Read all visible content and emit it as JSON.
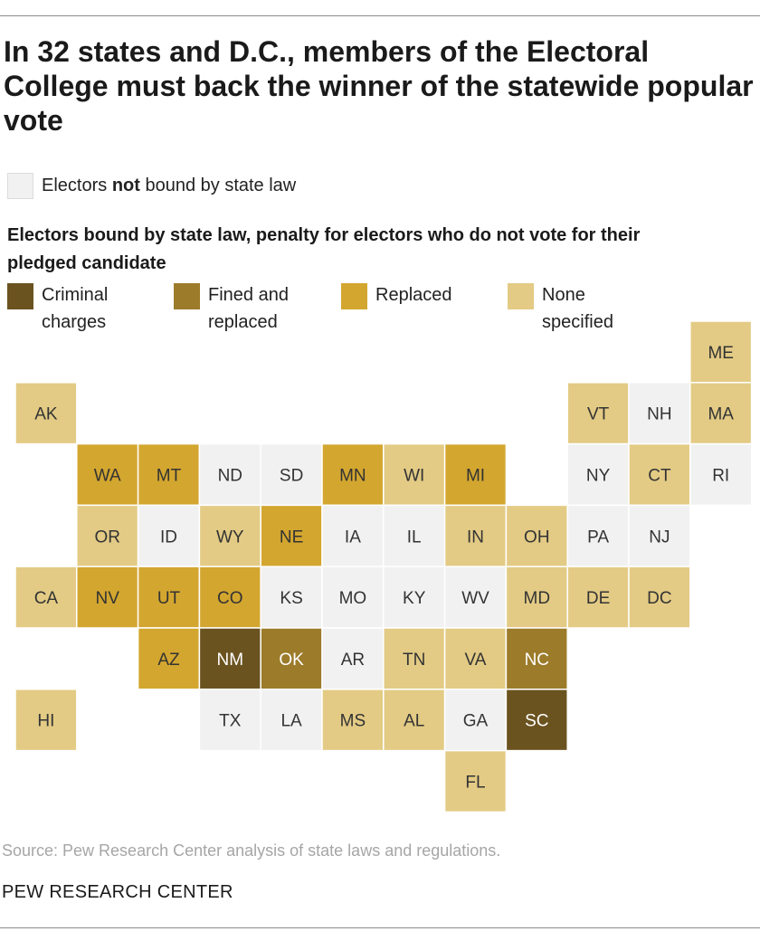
{
  "title": "In 32 states and D.C., members of the Electoral College must back the winner of the statewide popular vote",
  "legend": {
    "not_bound": {
      "before": "Electors ",
      "bold": "not",
      "after": " bound by state law",
      "color": "#f1f1f1"
    },
    "bound_heading": "Electors bound by state law, penalty for electors who do not vote for their pledged candidate",
    "categories": [
      {
        "key": "criminal",
        "line1": "Criminal",
        "line2": "charges",
        "color": "#6b5320"
      },
      {
        "key": "fined",
        "line1": "Fined and",
        "line2": "replaced",
        "color": "#9c7b2a"
      },
      {
        "key": "replaced",
        "line1": "Replaced",
        "line2": "",
        "color": "#d3a62f"
      },
      {
        "key": "none",
        "line1": "None",
        "line2": "specified",
        "color": "#e3cb85"
      }
    ]
  },
  "colors": {
    "not": "#f1f1f1",
    "none": "#e3cb85",
    "replaced": "#d3a62f",
    "fined": "#9c7b2a",
    "criminal": "#6b5320",
    "tile_border": "#ffffff",
    "label_dark": "#333333",
    "label_light": "#ffffff"
  },
  "states": [
    {
      "abbr": "ME",
      "row": 0,
      "col": 11,
      "cat": "none"
    },
    {
      "abbr": "AK",
      "row": 1,
      "col": 0,
      "cat": "none"
    },
    {
      "abbr": "VT",
      "row": 1,
      "col": 9,
      "cat": "none"
    },
    {
      "abbr": "NH",
      "row": 1,
      "col": 10,
      "cat": "not"
    },
    {
      "abbr": "MA",
      "row": 1,
      "col": 11,
      "cat": "none"
    },
    {
      "abbr": "WA",
      "row": 2,
      "col": 1,
      "cat": "replaced"
    },
    {
      "abbr": "MT",
      "row": 2,
      "col": 2,
      "cat": "replaced"
    },
    {
      "abbr": "ND",
      "row": 2,
      "col": 3,
      "cat": "not"
    },
    {
      "abbr": "SD",
      "row": 2,
      "col": 4,
      "cat": "not"
    },
    {
      "abbr": "MN",
      "row": 2,
      "col": 5,
      "cat": "replaced"
    },
    {
      "abbr": "WI",
      "row": 2,
      "col": 6,
      "cat": "none"
    },
    {
      "abbr": "MI",
      "row": 2,
      "col": 7,
      "cat": "replaced"
    },
    {
      "abbr": "NY",
      "row": 2,
      "col": 9,
      "cat": "not"
    },
    {
      "abbr": "CT",
      "row": 2,
      "col": 10,
      "cat": "none"
    },
    {
      "abbr": "RI",
      "row": 2,
      "col": 11,
      "cat": "not"
    },
    {
      "abbr": "OR",
      "row": 3,
      "col": 1,
      "cat": "none"
    },
    {
      "abbr": "ID",
      "row": 3,
      "col": 2,
      "cat": "not"
    },
    {
      "abbr": "WY",
      "row": 3,
      "col": 3,
      "cat": "none"
    },
    {
      "abbr": "NE",
      "row": 3,
      "col": 4,
      "cat": "replaced"
    },
    {
      "abbr": "IA",
      "row": 3,
      "col": 5,
      "cat": "not"
    },
    {
      "abbr": "IL",
      "row": 3,
      "col": 6,
      "cat": "not"
    },
    {
      "abbr": "IN",
      "row": 3,
      "col": 7,
      "cat": "none"
    },
    {
      "abbr": "OH",
      "row": 3,
      "col": 8,
      "cat": "none"
    },
    {
      "abbr": "PA",
      "row": 3,
      "col": 9,
      "cat": "not"
    },
    {
      "abbr": "NJ",
      "row": 3,
      "col": 10,
      "cat": "not"
    },
    {
      "abbr": "CA",
      "row": 4,
      "col": 0,
      "cat": "none"
    },
    {
      "abbr": "NV",
      "row": 4,
      "col": 1,
      "cat": "replaced"
    },
    {
      "abbr": "UT",
      "row": 4,
      "col": 2,
      "cat": "replaced"
    },
    {
      "abbr": "CO",
      "row": 4,
      "col": 3,
      "cat": "replaced"
    },
    {
      "abbr": "KS",
      "row": 4,
      "col": 4,
      "cat": "not"
    },
    {
      "abbr": "MO",
      "row": 4,
      "col": 5,
      "cat": "not"
    },
    {
      "abbr": "KY",
      "row": 4,
      "col": 6,
      "cat": "not"
    },
    {
      "abbr": "WV",
      "row": 4,
      "col": 7,
      "cat": "not"
    },
    {
      "abbr": "MD",
      "row": 4,
      "col": 8,
      "cat": "none"
    },
    {
      "abbr": "DE",
      "row": 4,
      "col": 9,
      "cat": "none"
    },
    {
      "abbr": "DC",
      "row": 4,
      "col": 10,
      "cat": "none"
    },
    {
      "abbr": "AZ",
      "row": 5,
      "col": 2,
      "cat": "replaced"
    },
    {
      "abbr": "NM",
      "row": 5,
      "col": 3,
      "cat": "criminal"
    },
    {
      "abbr": "OK",
      "row": 5,
      "col": 4,
      "cat": "fined"
    },
    {
      "abbr": "AR",
      "row": 5,
      "col": 5,
      "cat": "not"
    },
    {
      "abbr": "TN",
      "row": 5,
      "col": 6,
      "cat": "none"
    },
    {
      "abbr": "VA",
      "row": 5,
      "col": 7,
      "cat": "none"
    },
    {
      "abbr": "NC",
      "row": 5,
      "col": 8,
      "cat": "fined"
    },
    {
      "abbr": "HI",
      "row": 6,
      "col": 0,
      "cat": "none"
    },
    {
      "abbr": "TX",
      "row": 6,
      "col": 3,
      "cat": "not"
    },
    {
      "abbr": "LA",
      "row": 6,
      "col": 4,
      "cat": "not"
    },
    {
      "abbr": "MS",
      "row": 6,
      "col": 5,
      "cat": "none"
    },
    {
      "abbr": "AL",
      "row": 6,
      "col": 6,
      "cat": "none"
    },
    {
      "abbr": "GA",
      "row": 6,
      "col": 7,
      "cat": "not"
    },
    {
      "abbr": "SC",
      "row": 6,
      "col": 8,
      "cat": "criminal"
    },
    {
      "abbr": "FL",
      "row": 7,
      "col": 7,
      "cat": "none"
    }
  ],
  "source": "Source: Pew Research Center analysis of state laws and regulations.",
  "brand": "PEW RESEARCH CENTER"
}
